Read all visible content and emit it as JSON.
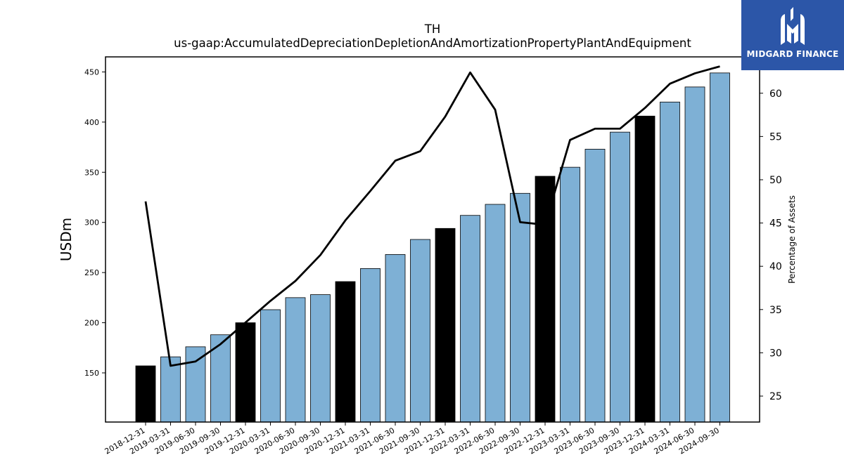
{
  "brand": {
    "name": "MIDGARD FINANCE",
    "color": "#2c56a8"
  },
  "chart_data": {
    "type": "bar",
    "title": "TH",
    "subtitle": "us-gaap:AccumulatedDepreciationDepletionAndAmortizationPropertyPlantAndEquipment",
    "ylabel": "USDm",
    "y2label": "Percentage of Assets",
    "ylim": [
      101,
      465
    ],
    "y2lim": [
      22,
      64.2
    ],
    "yticks": [
      150,
      200,
      250,
      300,
      350,
      400,
      450
    ],
    "y2ticks": [
      25,
      30,
      35,
      40,
      45,
      50,
      55,
      60
    ],
    "grid": false,
    "categories": [
      "2018-12-31",
      "2019-03-31",
      "2019-06-30",
      "2019-09-30",
      "2019-12-31",
      "2020-03-31",
      "2020-06-30",
      "2020-09-30",
      "2020-12-31",
      "2021-03-31",
      "2021-06-30",
      "2021-09-30",
      "2021-12-31",
      "2022-03-31",
      "2022-06-30",
      "2022-09-30",
      "2022-12-31",
      "2023-03-31",
      "2023-06-30",
      "2023-09-30",
      "2023-12-31",
      "2024-03-31",
      "2024-06-30",
      "2024-09-30"
    ],
    "series": [
      {
        "type": "bar",
        "values": [
          157,
          166,
          176,
          188,
          200,
          213,
          225,
          228,
          241,
          254,
          268,
          283,
          294,
          307,
          318,
          329,
          346,
          355,
          373,
          390,
          406,
          420,
          435,
          449
        ],
        "colors": [
          "#000000",
          "#7eb0d5",
          "#7eb0d5",
          "#7eb0d5",
          "#000000",
          "#7eb0d5",
          "#7eb0d5",
          "#7eb0d5",
          "#000000",
          "#7eb0d5",
          "#7eb0d5",
          "#7eb0d5",
          "#000000",
          "#7eb0d5",
          "#7eb0d5",
          "#7eb0d5",
          "#000000",
          "#7eb0d5",
          "#7eb0d5",
          "#7eb0d5",
          "#000000",
          "#7eb0d5",
          "#7eb0d5",
          "#7eb0d5"
        ]
      },
      {
        "type": "line",
        "axis": "right",
        "color": "#000000",
        "values": [
          47.5,
          28.5,
          29.0,
          31.0,
          33.5,
          36.0,
          38.3,
          41.3,
          45.3,
          48.7,
          52.2,
          53.3,
          57.3,
          62.4,
          58.1,
          45.1,
          44.8,
          54.6,
          55.9,
          55.9,
          58.3,
          61.1,
          62.3,
          63.1
        ]
      }
    ]
  }
}
